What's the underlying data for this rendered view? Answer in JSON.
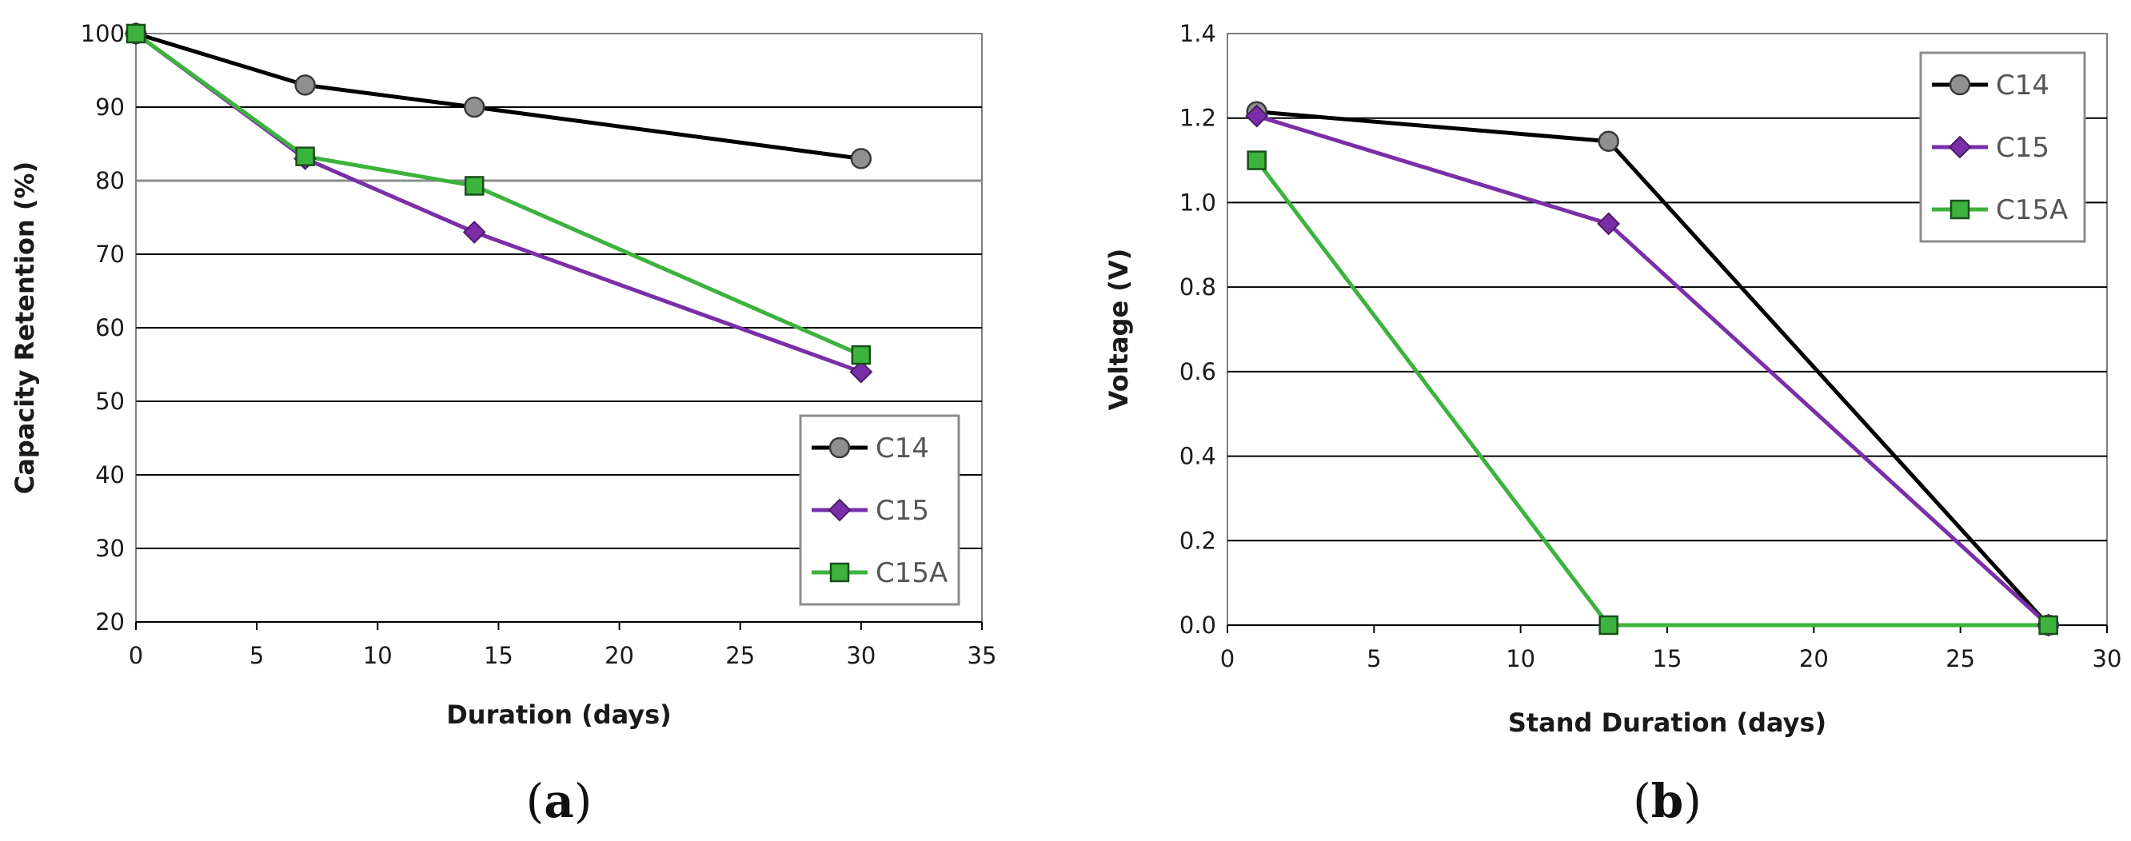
{
  "chart_data": [
    {
      "id": "a",
      "type": "line",
      "panel_label": "a",
      "xlabel": "Duration (days)",
      "ylabel": "Capacity Retention (%)",
      "xlim": [
        0,
        35
      ],
      "ylim": [
        20,
        100
      ],
      "xticks": [
        0,
        5,
        10,
        15,
        20,
        25,
        30,
        35
      ],
      "yticks": [
        20,
        30,
        40,
        50,
        60,
        70,
        80,
        90,
        100
      ],
      "tick_decimals": 0,
      "grid": "horizontal",
      "legend_position": "bottom-right",
      "series": [
        {
          "name": "C14",
          "marker": "circle",
          "color": "#000000",
          "marker_fill": "#909090",
          "x": [
            0,
            7,
            14,
            30
          ],
          "y": [
            100,
            93,
            90,
            83
          ]
        },
        {
          "name": "C15",
          "marker": "diamond",
          "color": "#7a2fa8",
          "marker_fill": "#7a2fa8",
          "x": [
            0,
            7,
            14,
            30
          ],
          "y": [
            100,
            83,
            73,
            54
          ]
        },
        {
          "name": "C15A",
          "marker": "square",
          "color": "#3cb33c",
          "marker_fill": "#3cb33c",
          "x": [
            0,
            7,
            14,
            30
          ],
          "y": [
            100,
            83.3,
            79.3,
            56.3
          ]
        }
      ]
    },
    {
      "id": "b",
      "type": "line",
      "panel_label": "b",
      "xlabel": "Stand Duration (days)",
      "ylabel": "Voltage (V)",
      "xlim": [
        0,
        30
      ],
      "ylim": [
        0,
        1.4
      ],
      "xticks": [
        0,
        5,
        10,
        15,
        20,
        25,
        30
      ],
      "yticks": [
        0.0,
        0.2,
        0.4,
        0.6,
        0.8,
        1.0,
        1.2,
        1.4
      ],
      "tick_decimals": 1,
      "grid": "horizontal",
      "legend_position": "top-right",
      "series": [
        {
          "name": "C14",
          "marker": "circle",
          "color": "#000000",
          "marker_fill": "#909090",
          "x": [
            1,
            13,
            28
          ],
          "y": [
            1.215,
            1.145,
            0.0
          ]
        },
        {
          "name": "C15",
          "marker": "diamond",
          "color": "#7a2fa8",
          "marker_fill": "#7a2fa8",
          "x": [
            1,
            13,
            28
          ],
          "y": [
            1.205,
            0.95,
            0.0
          ]
        },
        {
          "name": "C15A",
          "marker": "square",
          "color": "#3cb33c",
          "marker_fill": "#3cb33c",
          "x": [
            1,
            13,
            28
          ],
          "y": [
            1.1,
            0.0,
            0.0
          ]
        }
      ]
    }
  ]
}
